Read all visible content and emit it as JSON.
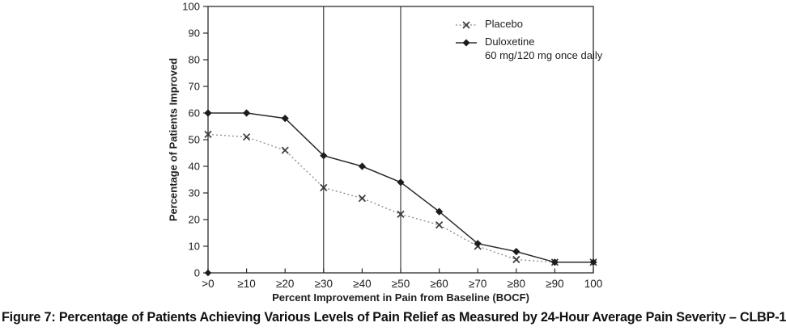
{
  "figure": {
    "caption": "Figure 7: Percentage of Patients Achieving Various Levels of Pain Relief as Measured by 24-Hour Average Pain Severity – CLBP-1"
  },
  "chart_data": {
    "type": "line",
    "title": "",
    "xlabel": "Percent Improvement in Pain from Baseline (BOCF)",
    "ylabel": "Percentage of Patients Improved",
    "categories": [
      ">0",
      "≥10",
      "≥20",
      "≥30",
      "≥40",
      "≥50",
      "≥60",
      "≥70",
      "≥80",
      "≥90",
      "100"
    ],
    "y_ticks": [
      0,
      10,
      20,
      30,
      40,
      50,
      60,
      70,
      80,
      90,
      100
    ],
    "ylim": [
      0,
      100
    ],
    "grid": false,
    "reference_lines_at": [
      "≥30",
      "≥50"
    ],
    "legend_position": "top-right-inside",
    "colors": {
      "axis_ink": "#2b2b2b",
      "text_ink": "#1e1e1e",
      "placebo_line": "#8a8a8a",
      "placebo_marker": "#3a3a3a",
      "duloxetine_line": "#2b2b2b",
      "duloxetine_marker": "#1c1c1c"
    },
    "series": [
      {
        "name": "Placebo",
        "legend_label": "Placebo",
        "marker": "x",
        "line_style": "dotted",
        "values": [
          52,
          51,
          46,
          32,
          28,
          22,
          18,
          10,
          5,
          4,
          4
        ]
      },
      {
        "name": "Duloxetine",
        "legend_label": "Duloxetine",
        "legend_label_line2": "60 mg/120 mg once daily",
        "marker": "diamond",
        "line_style": "solid",
        "values": [
          60,
          60,
          58,
          44,
          40,
          34,
          23,
          11,
          8,
          4,
          4
        ]
      }
    ]
  }
}
